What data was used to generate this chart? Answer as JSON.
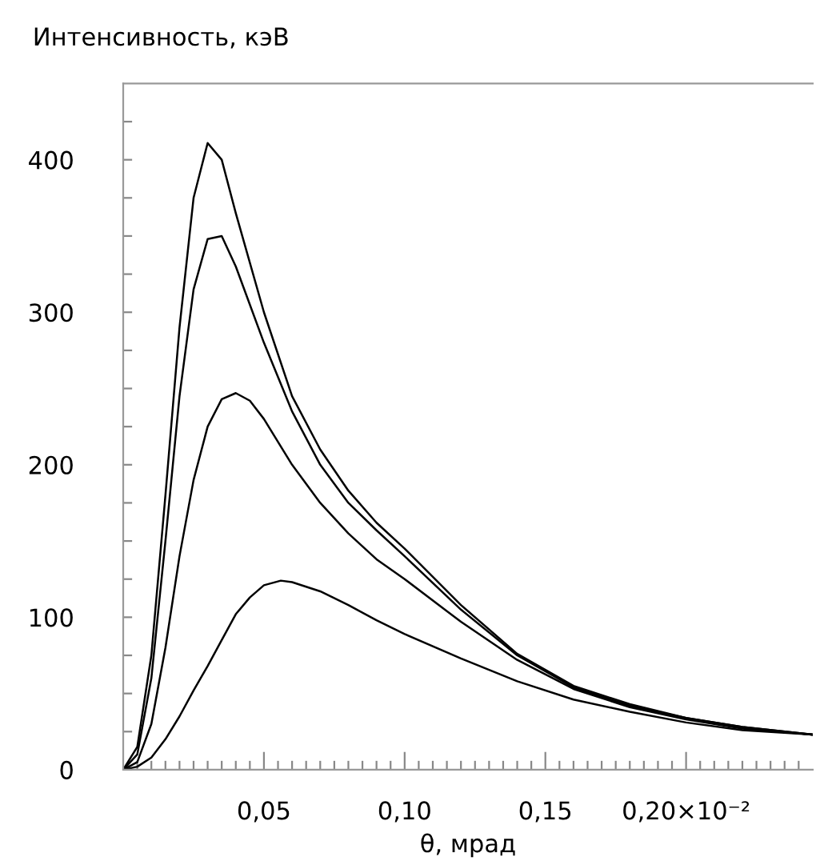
{
  "chart_data": {
    "type": "line",
    "xlabel": "θ, мрад",
    "ylabel": "Интенсивность, кэВ",
    "xlim": [
      0,
      0.245
    ],
    "ylim": [
      0,
      450
    ],
    "xticks": [
      {
        "value": 0.005,
        "label": null
      },
      {
        "value": 0.01,
        "label": null
      },
      {
        "value": 0.015,
        "label": null
      },
      {
        "value": 0.02,
        "label": null
      },
      {
        "value": 0.025,
        "label": null
      },
      {
        "value": 0.03,
        "label": null
      },
      {
        "value": 0.035,
        "label": null
      },
      {
        "value": 0.04,
        "label": null
      },
      {
        "value": 0.045,
        "label": null
      },
      {
        "value": 0.05,
        "label": "0,05"
      },
      {
        "value": 0.055,
        "label": null
      },
      {
        "value": 0.06,
        "label": null
      },
      {
        "value": 0.065,
        "label": null
      },
      {
        "value": 0.07,
        "label": null
      },
      {
        "value": 0.075,
        "label": null
      },
      {
        "value": 0.08,
        "label": null
      },
      {
        "value": 0.085,
        "label": null
      },
      {
        "value": 0.09,
        "label": null
      },
      {
        "value": 0.095,
        "label": null
      },
      {
        "value": 0.1,
        "label": "0,10"
      },
      {
        "value": 0.105,
        "label": null
      },
      {
        "value": 0.11,
        "label": null
      },
      {
        "value": 0.115,
        "label": null
      },
      {
        "value": 0.12,
        "label": null
      },
      {
        "value": 0.125,
        "label": null
      },
      {
        "value": 0.13,
        "label": null
      },
      {
        "value": 0.135,
        "label": null
      },
      {
        "value": 0.14,
        "label": null
      },
      {
        "value": 0.145,
        "label": null
      },
      {
        "value": 0.15,
        "label": "0,15"
      },
      {
        "value": 0.155,
        "label": null
      },
      {
        "value": 0.16,
        "label": null
      },
      {
        "value": 0.165,
        "label": null
      },
      {
        "value": 0.17,
        "label": null
      },
      {
        "value": 0.175,
        "label": null
      },
      {
        "value": 0.18,
        "label": null
      },
      {
        "value": 0.185,
        "label": null
      },
      {
        "value": 0.19,
        "label": null
      },
      {
        "value": 0.195,
        "label": null
      },
      {
        "value": 0.2,
        "label": "0,20×10⁻²"
      },
      {
        "value": 0.205,
        "label": null
      },
      {
        "value": 0.21,
        "label": null
      },
      {
        "value": 0.215,
        "label": null
      },
      {
        "value": 0.22,
        "label": null
      },
      {
        "value": 0.225,
        "label": null
      },
      {
        "value": 0.23,
        "label": null
      },
      {
        "value": 0.235,
        "label": null
      },
      {
        "value": 0.24,
        "label": null
      }
    ],
    "yticks": [
      0,
      {
        "value": 25,
        "label": null
      },
      {
        "value": 50,
        "label": null
      },
      {
        "value": 75,
        "label": null
      },
      100,
      {
        "value": 125,
        "label": null
      },
      {
        "value": 150,
        "label": null
      },
      {
        "value": 175,
        "label": null
      },
      200,
      {
        "value": 225,
        "label": null
      },
      {
        "value": 250,
        "label": null
      },
      {
        "value": 275,
        "label": null
      },
      300,
      {
        "value": 325,
        "label": null
      },
      {
        "value": 350,
        "label": null
      },
      {
        "value": 375,
        "label": null
      },
      400,
      {
        "value": 425,
        "label": null
      }
    ],
    "grid": false,
    "marker": "none",
    "line_style": "solid",
    "series": [
      {
        "color": "#000000",
        "x": [
          0,
          0.005,
          0.01,
          0.015,
          0.02,
          0.025,
          0.03,
          0.035,
          0.04,
          0.05,
          0.06,
          0.07,
          0.08,
          0.09,
          0.1,
          0.12,
          0.14,
          0.16,
          0.18,
          0.2,
          0.22,
          0.245
        ],
        "values": [
          0,
          15,
          75,
          180,
          290,
          375,
          411,
          400,
          365,
          300,
          245,
          210,
          183,
          162,
          145,
          108,
          76,
          55,
          43,
          34,
          28,
          23
        ]
      },
      {
        "color": "#000000",
        "x": [
          0,
          0.005,
          0.01,
          0.015,
          0.02,
          0.025,
          0.03,
          0.035,
          0.04,
          0.05,
          0.06,
          0.07,
          0.08,
          0.09,
          0.1,
          0.12,
          0.14,
          0.16,
          0.18,
          0.2,
          0.22,
          0.245
        ],
        "values": [
          0,
          10,
          60,
          150,
          245,
          315,
          348,
          350,
          330,
          280,
          235,
          200,
          175,
          157,
          140,
          105,
          75,
          54,
          42,
          34,
          28,
          23
        ]
      },
      {
        "color": "#000000",
        "x": [
          0,
          0.005,
          0.01,
          0.015,
          0.02,
          0.025,
          0.03,
          0.035,
          0.04,
          0.045,
          0.05,
          0.06,
          0.07,
          0.08,
          0.09,
          0.1,
          0.12,
          0.14,
          0.16,
          0.18,
          0.2,
          0.22,
          0.245
        ],
        "values": [
          0,
          5,
          30,
          80,
          140,
          190,
          225,
          243,
          247,
          242,
          230,
          200,
          175,
          155,
          138,
          125,
          97,
          72,
          53,
          41,
          33,
          27,
          23
        ]
      },
      {
        "color": "#000000",
        "x": [
          0,
          0.005,
          0.01,
          0.015,
          0.02,
          0.025,
          0.03,
          0.035,
          0.04,
          0.045,
          0.05,
          0.056,
          0.06,
          0.07,
          0.08,
          0.09,
          0.1,
          0.12,
          0.14,
          0.16,
          0.18,
          0.2,
          0.22,
          0.245
        ],
        "values": [
          0,
          2,
          8,
          20,
          35,
          52,
          68,
          85,
          102,
          113,
          121,
          124,
          123,
          117,
          108,
          98,
          89,
          73,
          58,
          46,
          38,
          31,
          26,
          23
        ]
      }
    ]
  }
}
